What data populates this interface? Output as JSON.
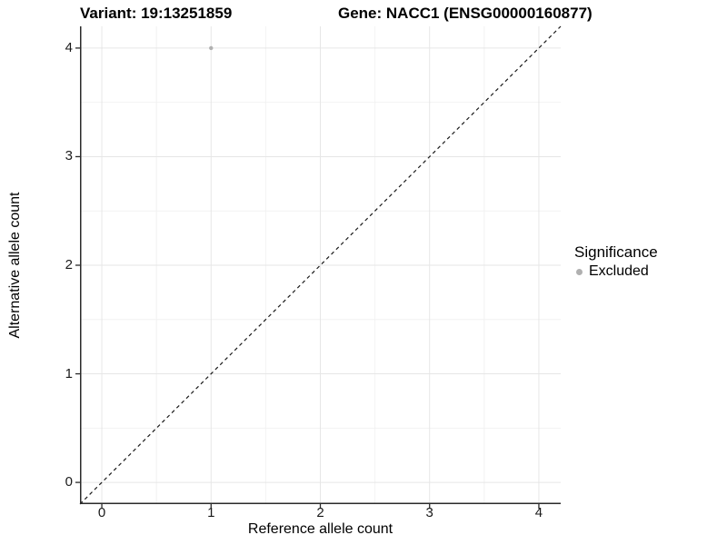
{
  "header": {
    "title_left": "Variant: 19:13251859",
    "title_right": "Gene: NACC1 (ENSG00000160877)"
  },
  "chart_data": {
    "type": "scatter",
    "title": "Variant: 19:13251859 / Gene: NACC1 (ENSG00000160877)",
    "xlabel": "Reference allele count",
    "ylabel": "Alternative allele count",
    "xlim": [
      -0.2,
      4.2
    ],
    "ylim": [
      -0.2,
      4.2
    ],
    "x_ticks": [
      0,
      1,
      2,
      3,
      4
    ],
    "y_ticks": [
      0,
      1,
      2,
      3,
      4
    ],
    "grid": "major and minor, light gray, minor at 0.5 steps",
    "points": [
      {
        "x": 1,
        "y": 4,
        "series": "Excluded"
      }
    ],
    "identity_line": {
      "slope": 1,
      "intercept": 0,
      "style": "dashed"
    },
    "legend": {
      "position": "right",
      "title": "Significance",
      "entries": [
        {
          "label": "Excluded",
          "color": "#b0b0b0",
          "marker": "circle"
        }
      ]
    },
    "colors": {
      "point": "#b0b0b0",
      "grid_major": "#e6e6e6",
      "grid_minor": "#f2f2f2",
      "axis_line": "#2a2a2a",
      "dashed_line": "#1a1a1a",
      "background": "#ffffff"
    }
  }
}
